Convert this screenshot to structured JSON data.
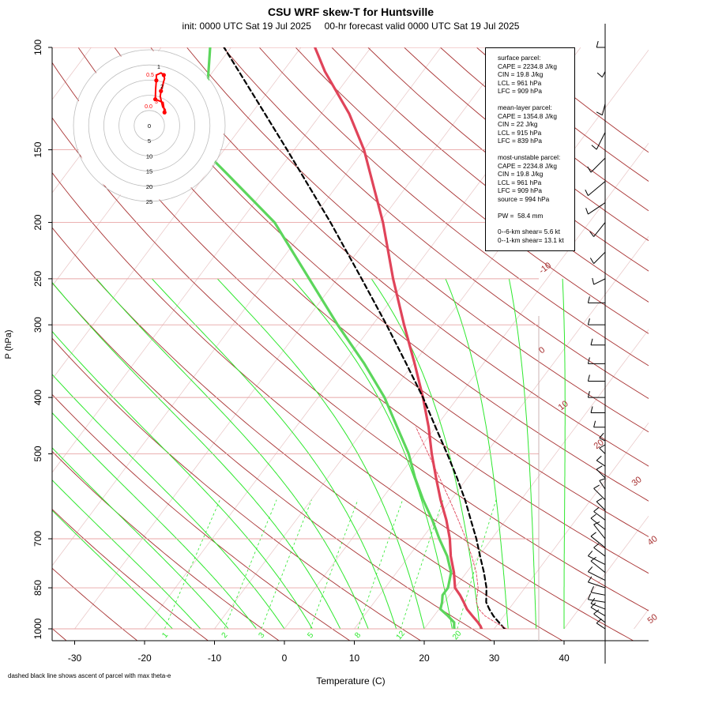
{
  "title": "CSU WRF skew-T for Huntsville",
  "subtitle": "init: 0000 UTC Sat 19 Jul 2025     00-hr forecast valid 0000 UTC Sat 19 Jul 2025",
  "footnote": "dashed black line shows ascent of parcel with max theta-e",
  "chart_data": {
    "type": "line",
    "title": "CSU WRF skew-T for Huntsville",
    "xlabel": "Temperature (C)",
    "ylabel": "P (hPa)",
    "x_ticks": [
      "-30",
      "-20",
      "-10",
      "0",
      "10",
      "20",
      "30",
      "40"
    ],
    "y_ticks": [
      "100",
      "150",
      "200",
      "250",
      "300",
      "400",
      "500",
      "700",
      "850",
      "1000"
    ],
    "mixing_ratio_labels": [
      "1",
      "2",
      "3",
      "5",
      "8",
      "12",
      "20"
    ],
    "isotherm_labels": [
      "-10",
      "0",
      "10",
      "20",
      "30",
      "40",
      "50"
    ],
    "series": [
      {
        "name": "temperature",
        "color": "#e0445a",
        "points": [
          [
            28.2,
            1000
          ],
          [
            27.8,
            990
          ],
          [
            27.0,
            975
          ],
          [
            25.5,
            950
          ],
          [
            24.0,
            925
          ],
          [
            22.8,
            900
          ],
          [
            21.5,
            875
          ],
          [
            20.0,
            850
          ],
          [
            18.2,
            800
          ],
          [
            16.0,
            750
          ],
          [
            14.0,
            700
          ],
          [
            11.5,
            650
          ],
          [
            8.5,
            600
          ],
          [
            5.5,
            550
          ],
          [
            2.3,
            500
          ],
          [
            -1.0,
            450
          ],
          [
            -5.0,
            400
          ],
          [
            -9.8,
            350
          ],
          [
            -15.5,
            300
          ],
          [
            -22.0,
            250
          ],
          [
            -29.5,
            200
          ],
          [
            -40.0,
            150
          ],
          [
            -46.0,
            130
          ],
          [
            -54.0,
            110
          ],
          [
            -58.0,
            100
          ]
        ]
      },
      {
        "name": "dewpoint",
        "color": "#5cd65c",
        "points": [
          [
            24.3,
            1000
          ],
          [
            24.0,
            990
          ],
          [
            23.6,
            975
          ],
          [
            22.0,
            950
          ],
          [
            20.2,
            925
          ],
          [
            19.7,
            900
          ],
          [
            19.0,
            875
          ],
          [
            19.0,
            850
          ],
          [
            17.8,
            800
          ],
          [
            15.5,
            750
          ],
          [
            12.5,
            700
          ],
          [
            9.5,
            650
          ],
          [
            6.0,
            600
          ],
          [
            2.5,
            550
          ],
          [
            -1.0,
            500
          ],
          [
            -5.5,
            450
          ],
          [
            -10.5,
            400
          ],
          [
            -17.0,
            350
          ],
          [
            -25.0,
            300
          ],
          [
            -34.0,
            250
          ],
          [
            -45.0,
            200
          ],
          [
            -57.0,
            165
          ],
          [
            -63.0,
            150
          ],
          [
            -73.0,
            100
          ]
        ]
      },
      {
        "name": "parcel",
        "color": "#000000",
        "dashed": true,
        "points": [
          [
            31.5,
            1000
          ],
          [
            30.0,
            975
          ],
          [
            28.5,
            950
          ],
          [
            27.2,
            925
          ],
          [
            26.0,
            900
          ],
          [
            24.5,
            850
          ],
          [
            22.5,
            800
          ],
          [
            20.2,
            750
          ],
          [
            17.8,
            700
          ],
          [
            15.0,
            650
          ],
          [
            12.0,
            600
          ],
          [
            8.5,
            550
          ],
          [
            4.5,
            500
          ],
          [
            0.0,
            450
          ],
          [
            -5.0,
            400
          ],
          [
            -11.0,
            350
          ],
          [
            -18.0,
            300
          ],
          [
            -26.5,
            250
          ],
          [
            -37.0,
            200
          ],
          [
            -51.0,
            150
          ],
          [
            -62.0,
            120
          ],
          [
            -71.0,
            100
          ]
        ]
      },
      {
        "name": "virtual-temperature-parcel",
        "color": "#e0445a",
        "dashed": true,
        "points": [
          [
            31.8,
            1000
          ],
          [
            29.5,
            975
          ],
          [
            27.3,
            950
          ],
          [
            25.7,
            925
          ],
          [
            24.6,
            900
          ],
          [
            23.3,
            850
          ],
          [
            21.4,
            800
          ],
          [
            19.0,
            750
          ],
          [
            16.3,
            700
          ],
          [
            13.2,
            650
          ],
          [
            9.8,
            600
          ],
          [
            6.0,
            550
          ],
          [
            1.8,
            500
          ],
          [
            -2.8,
            450
          ]
        ]
      }
    ],
    "hodograph": {
      "ring_labels": [
        "0",
        "5",
        "10",
        "15",
        "20",
        "25"
      ],
      "height_labels": [
        "1",
        "0.5",
        "2",
        "0.0",
        "3"
      ],
      "color": "#ff0000",
      "points": [
        [
          0.5,
          2.5
        ],
        [
          0.1,
          -0.3
        ],
        [
          -2.1,
          -1.2
        ],
        [
          -2.0,
          -4.0
        ],
        [
          -1.8,
          -6.5
        ],
        [
          -1.8,
          -8.0
        ],
        [
          -0.5,
          -8.6
        ],
        [
          0.3,
          -8.0
        ],
        [
          0.5,
          -7.0
        ],
        [
          0.2,
          -6.0
        ],
        [
          0,
          -5
        ],
        [
          -0.5,
          -3.5
        ],
        [
          -0.7,
          -2.0
        ],
        [
          0.0,
          1.0
        ],
        [
          0.5,
          1.5
        ],
        [
          0.8,
          2.0
        ]
      ]
    },
    "wind_barbs": [
      {
        "p": 1000,
        "u": -3,
        "v": 2
      },
      {
        "p": 975,
        "u": -4,
        "v": 3
      },
      {
        "p": 950,
        "u": -5,
        "v": 3
      },
      {
        "p": 925,
        "u": -5,
        "v": 2
      },
      {
        "p": 900,
        "u": -6,
        "v": 1
      },
      {
        "p": 875,
        "u": -5,
        "v": 1
      },
      {
        "p": 850,
        "u": -6,
        "v": 2
      },
      {
        "p": 825,
        "u": -6,
        "v": 3
      },
      {
        "p": 800,
        "u": -5,
        "v": 4
      },
      {
        "p": 775,
        "u": -6,
        "v": 3
      },
      {
        "p": 750,
        "u": -4,
        "v": 3
      },
      {
        "p": 725,
        "u": -5,
        "v": 4
      },
      {
        "p": 700,
        "u": -4,
        "v": 5
      },
      {
        "p": 675,
        "u": -5,
        "v": 4
      },
      {
        "p": 650,
        "u": -4,
        "v": 3
      },
      {
        "p": 625,
        "u": -3,
        "v": 3
      },
      {
        "p": 600,
        "u": -4,
        "v": 4
      },
      {
        "p": 575,
        "u": -2,
        "v": 3
      },
      {
        "p": 550,
        "u": -3,
        "v": 3
      },
      {
        "p": 525,
        "u": -3,
        "v": 2
      },
      {
        "p": 500,
        "u": -2,
        "v": 2
      },
      {
        "p": 475,
        "u": -2,
        "v": 1
      },
      {
        "p": 450,
        "u": -4,
        "v": 0
      },
      {
        "p": 425,
        "u": -5,
        "v": 0
      },
      {
        "p": 400,
        "u": -6,
        "v": 0
      },
      {
        "p": 375,
        "u": -6,
        "v": 0
      },
      {
        "p": 350,
        "u": -6,
        "v": 0
      },
      {
        "p": 325,
        "u": -5,
        "v": 0
      },
      {
        "p": 300,
        "u": -6,
        "v": 0
      },
      {
        "p": 275,
        "u": -6,
        "v": 0
      },
      {
        "p": 250,
        "u": -4,
        "v": -2
      },
      {
        "p": 225,
        "u": -4,
        "v": -4
      },
      {
        "p": 200,
        "u": -4,
        "v": -5
      },
      {
        "p": 185,
        "u": -6,
        "v": -4
      },
      {
        "p": 170,
        "u": -6,
        "v": -5
      },
      {
        "p": 155,
        "u": -5,
        "v": -5
      },
      {
        "p": 140,
        "u": -3,
        "v": -6
      },
      {
        "p": 125,
        "u": -1,
        "v": -4
      },
      {
        "p": 110,
        "u": -1,
        "v": -2
      },
      {
        "p": 100,
        "u": -3,
        "v": 0
      }
    ]
  },
  "info": {
    "surface": [
      "surface parcel:",
      "CAPE = 2234.8 J/kg",
      "CIN = 19.8 J/kg",
      "LCL = 961 hPa",
      "LFC = 909 hPa"
    ],
    "mean_layer": [
      "mean-layer parcel:",
      "CAPE = 1354.8 J/kg",
      "CIN = 22 J/kg",
      "LCL = 915 hPa",
      "LFC = 839 hPa"
    ],
    "most_unstable": [
      "most-unstable parcel:",
      "CAPE = 2234.8 J/kg",
      "CIN = 19.8 J/kg",
      "LCL = 961 hPa",
      "LFC = 909 hPa",
      "source = 994 hPa"
    ],
    "pw": [
      "PW =  58.4 mm"
    ],
    "shear": [
      "0--6-km shear= 5.6 kt",
      "0--1-km shear= 13.1 kt"
    ]
  }
}
